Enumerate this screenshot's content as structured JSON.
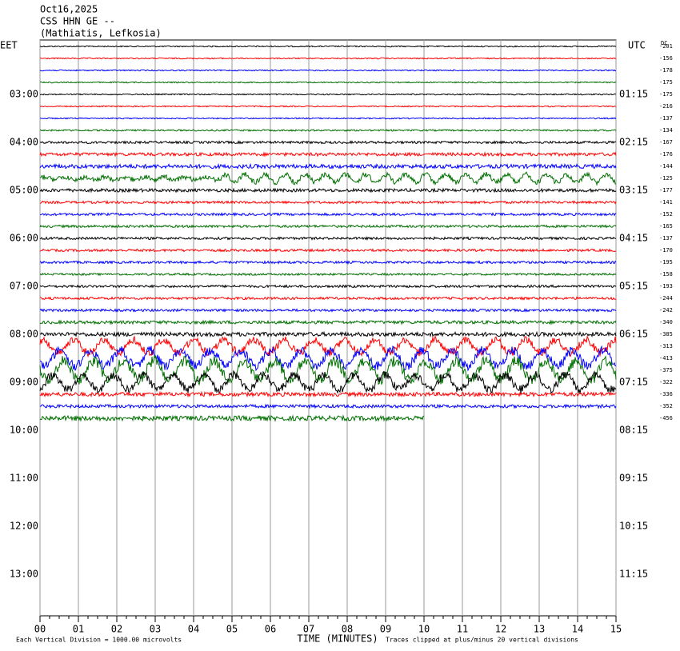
{
  "chart_data": {
    "type": "helicorder",
    "title_lines": [
      "Oct16,2025",
      "CSS HHN GE --",
      "(Mathiatis, Lefkosia)"
    ],
    "left_zone": "EET",
    "right_zone": "UTC",
    "offset_header": "DC",
    "left_labels": [
      "03:00",
      "04:00",
      "05:00",
      "06:00",
      "07:00",
      "08:00",
      "09:00",
      "10:00",
      "11:00",
      "12:00",
      "13:00"
    ],
    "right_labels": [
      "01:15",
      "02:15",
      "03:15",
      "04:15",
      "05:15",
      "06:15",
      "07:15",
      "08:15",
      "09:15",
      "10:15",
      "11:15"
    ],
    "offsets": [
      -201,
      -156,
      -178,
      -175,
      -175,
      -216,
      -137,
      -134,
      -167,
      -176,
      -144,
      -125,
      -177,
      -141,
      -152,
      -165,
      -137,
      -170,
      -195,
      -158,
      -193,
      -244,
      -242,
      -340,
      -385,
      -313,
      -413,
      -375,
      -322,
      -336,
      -352,
      -456
    ],
    "trace_colors": [
      "#000000",
      "#ff0000",
      "#0000ff",
      "#007000"
    ],
    "xlim": [
      0,
      15
    ],
    "xticks": [
      {
        "value": 0,
        "label": "00"
      },
      {
        "value": 1,
        "label": "01"
      },
      {
        "value": 2,
        "label": "02"
      },
      {
        "value": 3,
        "label": "03"
      },
      {
        "value": 4,
        "label": "04"
      },
      {
        "value": 5,
        "label": "05"
      },
      {
        "value": 6,
        "label": "06"
      },
      {
        "value": 7,
        "label": "07"
      },
      {
        "value": 8,
        "label": "08"
      },
      {
        "value": 9,
        "label": "09"
      },
      {
        "value": 10,
        "label": "10"
      },
      {
        "value": 11,
        "label": "11"
      },
      {
        "value": 12,
        "label": "12"
      },
      {
        "value": 13,
        "label": "13"
      },
      {
        "value": 14,
        "label": "14"
      },
      {
        "value": 15,
        "label": "15"
      }
    ],
    "xlabel": "TIME (MINUTES)",
    "scale_note": "Each Vertical Division = 1000.00 microvolts",
    "clip_note": "Traces clipped at plus/minus 20 vertical divisions",
    "grid": true
  }
}
